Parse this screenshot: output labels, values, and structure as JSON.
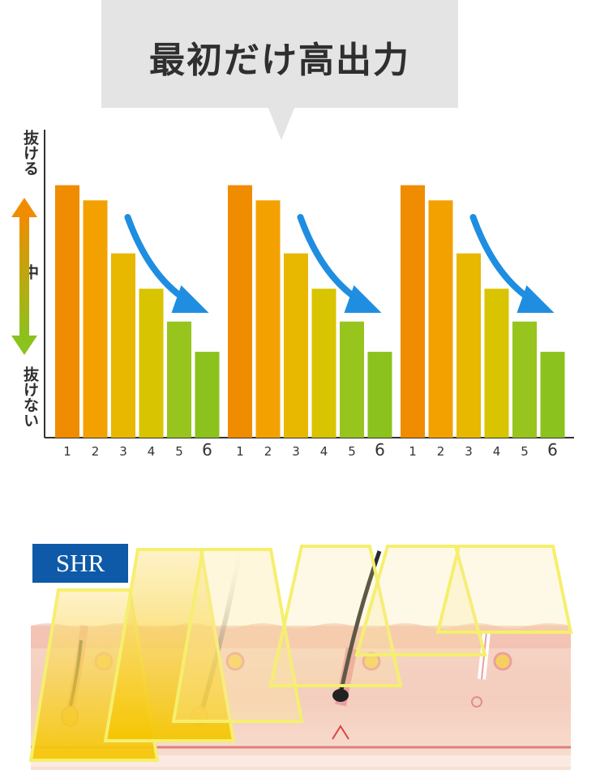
{
  "banner": {
    "title": "最初だけ高出力"
  },
  "y_axis": {
    "top_label": "抜ける",
    "middle_label": "中",
    "bottom_label": "抜けない"
  },
  "shr": {
    "label": "SHR"
  },
  "colors": {
    "bars": [
      "#f08c00",
      "#f3a100",
      "#e8b700",
      "#d8c400",
      "#98c41e",
      "#8cc21e"
    ],
    "arrow": "#1f8ee0",
    "gradient_top": "#f08c00",
    "gradient_bottom": "#8cc21e",
    "frame": "#f5ef6e"
  },
  "chart_data": {
    "type": "bar",
    "groups": [
      {
        "categories": [
          "1",
          "2",
          "3",
          "4",
          "5",
          "6"
        ],
        "values": [
          100,
          94,
          73,
          59,
          46,
          34
        ]
      },
      {
        "categories": [
          "1",
          "2",
          "3",
          "4",
          "5",
          "6"
        ],
        "values": [
          100,
          94,
          73,
          59,
          46,
          34
        ]
      },
      {
        "categories": [
          "1",
          "2",
          "3",
          "4",
          "5",
          "6"
        ],
        "values": [
          100,
          94,
          73,
          59,
          46,
          34
        ]
      }
    ],
    "ylim": [
      0,
      122
    ],
    "grid": false
  }
}
